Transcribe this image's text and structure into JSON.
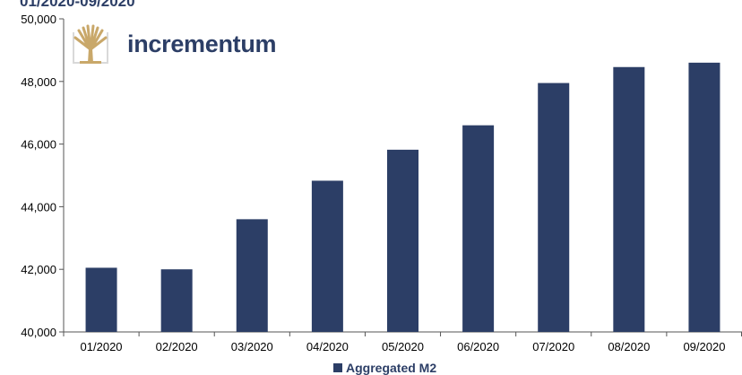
{
  "chart_data": {
    "type": "bar",
    "title": "01/2020-09/2020",
    "categories": [
      "01/2020",
      "02/2020",
      "03/2020",
      "04/2020",
      "05/2020",
      "06/2020",
      "07/2020",
      "08/2020",
      "09/2020"
    ],
    "series": [
      {
        "name": "Aggregated M2",
        "values": [
          42050,
          42000,
          43600,
          44830,
          45820,
          46600,
          47950,
          48460,
          48600
        ]
      }
    ],
    "ylim": [
      40000,
      50000
    ],
    "yticks": [
      "40,000",
      "42,000",
      "44,000",
      "46,000",
      "48,000",
      "50,000"
    ],
    "xlabel": "",
    "ylabel": "",
    "grid": false,
    "legend_position": "bottom",
    "bar_color": "#2c3e66"
  },
  "logo": {
    "brand": "incrementum",
    "icon": "tree-icon",
    "icon_color": "#c9a86a"
  }
}
